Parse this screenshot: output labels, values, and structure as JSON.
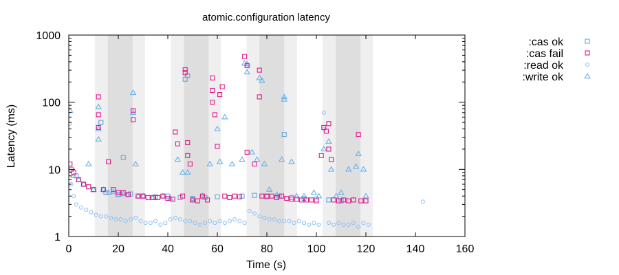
{
  "chart_data": {
    "type": "scatter",
    "title": "atomic.configuration latency",
    "xlabel": "Time (s)",
    "ylabel": "Latency (ms)",
    "xlim": [
      0,
      160
    ],
    "ylim": [
      1,
      1000
    ],
    "yscale": "log",
    "x_ticks": [
      0,
      20,
      40,
      60,
      80,
      100,
      120,
      140,
      160
    ],
    "y_ticks": [
      1,
      10,
      100,
      1000
    ],
    "y_tick_labels": [
      "1",
      "10",
      "100",
      "1000"
    ],
    "legend_position": "top-right outside",
    "grid": false,
    "nemesis_bands": [
      {
        "start": 10.5,
        "end": 30.8,
        "dark_start": 15.8,
        "dark_end": 25.8
      },
      {
        "start": 41.2,
        "end": 61.5,
        "dark_start": 46.5,
        "dark_end": 56.5
      },
      {
        "start": 71.8,
        "end": 92.2,
        "dark_start": 77.0,
        "dark_end": 87.0
      },
      {
        "start": 102.5,
        "end": 122.8,
        "dark_start": 107.8,
        "dark_end": 117.8
      }
    ],
    "series": [
      {
        "name": ":cas ok",
        "marker": "square",
        "color": "#66a3dd",
        "points": [
          [
            1,
            10
          ],
          [
            3,
            8
          ],
          [
            6,
            6
          ],
          [
            10,
            5
          ],
          [
            15,
            4.5
          ],
          [
            20,
            4.2
          ],
          [
            25,
            4.3
          ],
          [
            30,
            4
          ],
          [
            35,
            3.9
          ],
          [
            40,
            4
          ],
          [
            45,
            3.8
          ],
          [
            50,
            3.7
          ],
          [
            55,
            3.8
          ],
          [
            60,
            3.9
          ],
          [
            65,
            3.8
          ],
          [
            70,
            4
          ],
          [
            75,
            4.1
          ],
          [
            80,
            3.9
          ],
          [
            85,
            4
          ],
          [
            90,
            3.8
          ],
          [
            95,
            3.7
          ],
          [
            100,
            3.6
          ],
          [
            105,
            3.5
          ],
          [
            110,
            3.4
          ],
          [
            115,
            3.5
          ],
          [
            120,
            3.4
          ],
          [
            48,
            250
          ],
          [
            47,
            220
          ],
          [
            87,
            33
          ],
          [
            22,
            15
          ],
          [
            13,
            50
          ]
        ]
      },
      {
        "name": ":cas fail",
        "marker": "square",
        "color": "#e0198a",
        "points": [
          [
            0.5,
            12
          ],
          [
            2,
            9
          ],
          [
            4,
            7
          ],
          [
            6,
            6
          ],
          [
            8,
            5.5
          ],
          [
            10,
            5
          ],
          [
            12,
            120
          ],
          [
            12,
            65
          ],
          [
            12,
            42
          ],
          [
            14,
            5
          ],
          [
            16,
            13
          ],
          [
            18,
            5
          ],
          [
            20,
            4.5
          ],
          [
            22,
            4.5
          ],
          [
            24,
            4.2
          ],
          [
            26,
            55
          ],
          [
            26,
            75
          ],
          [
            28,
            4
          ],
          [
            30,
            4
          ],
          [
            32,
            3.8
          ],
          [
            34,
            3.8
          ],
          [
            36,
            3.8
          ],
          [
            38,
            4
          ],
          [
            40,
            3.7
          ],
          [
            42,
            3.6
          ],
          [
            43,
            36
          ],
          [
            44,
            24
          ],
          [
            46,
            4
          ],
          [
            47,
            305
          ],
          [
            47,
            275
          ],
          [
            48,
            25
          ],
          [
            48,
            16
          ],
          [
            49,
            12
          ],
          [
            50,
            3.5
          ],
          [
            52,
            3.4
          ],
          [
            54,
            4
          ],
          [
            56,
            3.5
          ],
          [
            58,
            230
          ],
          [
            58,
            150
          ],
          [
            58,
            100
          ],
          [
            59,
            65
          ],
          [
            60,
            22
          ],
          [
            61,
            130
          ],
          [
            62,
            170
          ],
          [
            63,
            4
          ],
          [
            65,
            3.8
          ],
          [
            67,
            4
          ],
          [
            69,
            3.9
          ],
          [
            71,
            480
          ],
          [
            72,
            350
          ],
          [
            72,
            18
          ],
          [
            75,
            12
          ],
          [
            77,
            300
          ],
          [
            77,
            120
          ],
          [
            78,
            4
          ],
          [
            80,
            4
          ],
          [
            82,
            4
          ],
          [
            84,
            3.8
          ],
          [
            86,
            4
          ],
          [
            88,
            3.7
          ],
          [
            90,
            3.6
          ],
          [
            92,
            3.6
          ],
          [
            94,
            3.5
          ],
          [
            96,
            3.5
          ],
          [
            98,
            3.5
          ],
          [
            100,
            3.4
          ],
          [
            102,
            16
          ],
          [
            103,
            42
          ],
          [
            104,
            37
          ],
          [
            105,
            48
          ],
          [
            105,
            20
          ],
          [
            106,
            14
          ],
          [
            107,
            3.5
          ],
          [
            109,
            3.4
          ],
          [
            111,
            3.5
          ],
          [
            113,
            3.4
          ],
          [
            115,
            3.5
          ],
          [
            117,
            33
          ],
          [
            118,
            3.4
          ],
          [
            120,
            3.4
          ]
        ]
      },
      {
        "name": ":read ok",
        "marker": "circle",
        "color": "#8fc3f5",
        "points": [
          [
            0.5,
            48
          ],
          [
            1,
            6
          ],
          [
            2,
            4
          ],
          [
            3,
            3
          ],
          [
            5,
            2.7
          ],
          [
            7,
            2.5
          ],
          [
            9,
            2.3
          ],
          [
            11,
            2.1
          ],
          [
            13,
            2
          ],
          [
            15,
            2
          ],
          [
            17,
            1.9
          ],
          [
            19,
            1.8
          ],
          [
            21,
            1.8
          ],
          [
            23,
            1.7
          ],
          [
            25,
            1.8
          ],
          [
            27,
            1.9
          ],
          [
            29,
            1.7
          ],
          [
            31,
            1.6
          ],
          [
            33,
            1.6
          ],
          [
            35,
            1.7
          ],
          [
            37,
            1.5
          ],
          [
            39,
            1.6
          ],
          [
            41,
            1.8
          ],
          [
            43,
            1.9
          ],
          [
            45,
            1.8
          ],
          [
            47,
            1.7
          ],
          [
            49,
            1.7
          ],
          [
            51,
            1.6
          ],
          [
            53,
            1.5
          ],
          [
            55,
            1.6
          ],
          [
            57,
            1.7
          ],
          [
            59,
            1.6
          ],
          [
            61,
            1.7
          ],
          [
            63,
            1.6
          ],
          [
            65,
            1.7
          ],
          [
            67,
            1.8
          ],
          [
            69,
            1.7
          ],
          [
            71,
            1.6
          ],
          [
            73,
            2.4
          ],
          [
            75,
            2.2
          ],
          [
            77,
            2
          ],
          [
            79,
            1.9
          ],
          [
            81,
            1.8
          ],
          [
            83,
            1.8
          ],
          [
            85,
            1.7
          ],
          [
            87,
            1.7
          ],
          [
            89,
            1.7
          ],
          [
            91,
            1.6
          ],
          [
            93,
            1.7
          ],
          [
            95,
            1.6
          ],
          [
            97,
            1.5
          ],
          [
            99,
            1.6
          ],
          [
            101,
            1.5
          ],
          [
            103,
            70
          ],
          [
            103,
            40
          ],
          [
            105,
            1.6
          ],
          [
            107,
            1.5
          ],
          [
            109,
            1.6
          ],
          [
            111,
            1.5
          ],
          [
            113,
            1.5
          ],
          [
            115,
            1.6
          ],
          [
            117,
            1.4
          ],
          [
            119,
            1.6
          ],
          [
            121,
            1.5
          ],
          [
            143,
            3.3
          ]
        ]
      },
      {
        "name": ":write ok",
        "marker": "triangle",
        "color": "#66b0ee",
        "points": [
          [
            0.5,
            75
          ],
          [
            2,
            8
          ],
          [
            4,
            7
          ],
          [
            6,
            6
          ],
          [
            8,
            12
          ],
          [
            10,
            5
          ],
          [
            12,
            85
          ],
          [
            12,
            40
          ],
          [
            12,
            28
          ],
          [
            14,
            5
          ],
          [
            16,
            4.5
          ],
          [
            18,
            4.6
          ],
          [
            20,
            4.2
          ],
          [
            22,
            4.3
          ],
          [
            24,
            4.2
          ],
          [
            26,
            138
          ],
          [
            26,
            70
          ],
          [
            27,
            12
          ],
          [
            28,
            4
          ],
          [
            30,
            4
          ],
          [
            34,
            3.8
          ],
          [
            38,
            4
          ],
          [
            41,
            3.7
          ],
          [
            44,
            14
          ],
          [
            46,
            9
          ],
          [
            48,
            9
          ],
          [
            50,
            3.5
          ],
          [
            54,
            4
          ],
          [
            57,
            12
          ],
          [
            60,
            40
          ],
          [
            61,
            13
          ],
          [
            63,
            60
          ],
          [
            66,
            12
          ],
          [
            70,
            14
          ],
          [
            71,
            380
          ],
          [
            72,
            370
          ],
          [
            72,
            280
          ],
          [
            74,
            18
          ],
          [
            76,
            14
          ],
          [
            77,
            230
          ],
          [
            78,
            210
          ],
          [
            79,
            12
          ],
          [
            81,
            5
          ],
          [
            84,
            4.2
          ],
          [
            86,
            14
          ],
          [
            87,
            120
          ],
          [
            87,
            110
          ],
          [
            90,
            13
          ],
          [
            92,
            4
          ],
          [
            95,
            4
          ],
          [
            99,
            4.5
          ],
          [
            101,
            4
          ],
          [
            103,
            20
          ],
          [
            105,
            26
          ],
          [
            106,
            10
          ],
          [
            108,
            4
          ],
          [
            110,
            4.5
          ],
          [
            113,
            10
          ],
          [
            116,
            11
          ],
          [
            117,
            17
          ],
          [
            119,
            10
          ],
          [
            120,
            4
          ]
        ]
      }
    ]
  }
}
